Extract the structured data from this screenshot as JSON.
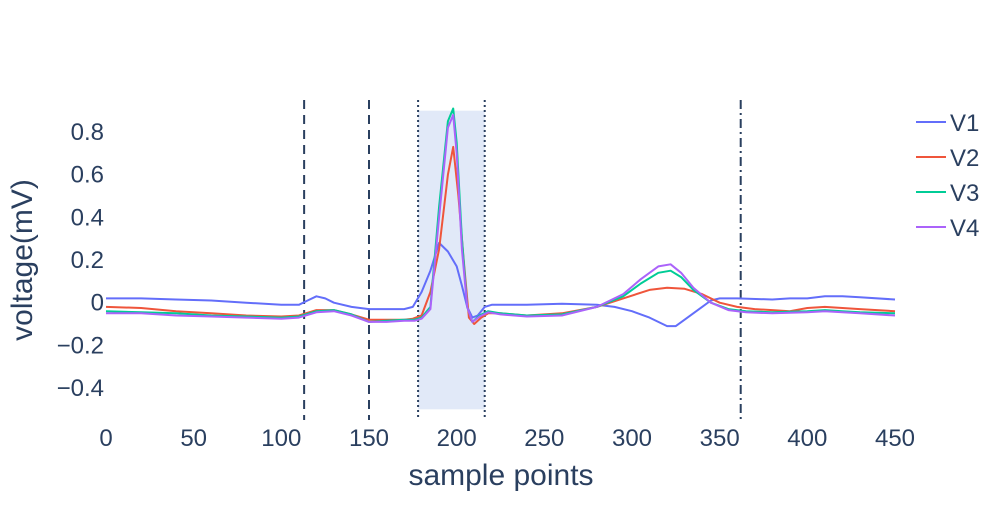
{
  "chart_data": {
    "type": "line",
    "title": "",
    "xlabel": "sample points",
    "ylabel": "voltage(mV)",
    "xlim": [
      0,
      450
    ],
    "ylim": [
      -0.55,
      0.95
    ],
    "x_ticks": [
      0,
      50,
      100,
      150,
      200,
      250,
      300,
      350,
      400,
      450
    ],
    "x_tick_labels": [
      "0",
      "50",
      "100",
      "150",
      "200",
      "250",
      "300",
      "350",
      "400",
      "450"
    ],
    "y_ticks": [
      0.8,
      0.6,
      0.4,
      0.2,
      0,
      -0.2,
      -0.4
    ],
    "y_tick_labels": [
      "0.8",
      "0.6",
      "0.4",
      "0.2",
      "0",
      "−0.2",
      "−0.4"
    ],
    "grid": false,
    "legend_position": "top-right",
    "highlight_region": {
      "x0": 178,
      "x1": 216,
      "y0": -0.5,
      "y1": 0.9,
      "color": "#e1e9f8"
    },
    "vlines": [
      {
        "x": 113,
        "style": "dash"
      },
      {
        "x": 150,
        "style": "dash"
      },
      {
        "x": 178,
        "style": "dot"
      },
      {
        "x": 216,
        "style": "dot"
      },
      {
        "x": 362,
        "style": "dashdot"
      }
    ],
    "series": [
      {
        "name": "V1",
        "color": "#636efa",
        "points": [
          [
            0,
            0.02
          ],
          [
            20,
            0.02
          ],
          [
            40,
            0.015
          ],
          [
            60,
            0.01
          ],
          [
            80,
            0.0
          ],
          [
            100,
            -0.01
          ],
          [
            110,
            -0.01
          ],
          [
            115,
            0.01
          ],
          [
            120,
            0.03
          ],
          [
            125,
            0.02
          ],
          [
            130,
            0.0
          ],
          [
            140,
            -0.02
          ],
          [
            150,
            -0.03
          ],
          [
            160,
            -0.03
          ],
          [
            170,
            -0.03
          ],
          [
            175,
            -0.02
          ],
          [
            180,
            0.05
          ],
          [
            185,
            0.15
          ],
          [
            190,
            0.28
          ],
          [
            195,
            0.24
          ],
          [
            200,
            0.17
          ],
          [
            203,
            0.08
          ],
          [
            206,
            -0.02
          ],
          [
            209,
            -0.07
          ],
          [
            212,
            -0.06
          ],
          [
            216,
            -0.02
          ],
          [
            220,
            -0.01
          ],
          [
            240,
            -0.01
          ],
          [
            260,
            -0.005
          ],
          [
            280,
            -0.01
          ],
          [
            290,
            -0.02
          ],
          [
            300,
            -0.04
          ],
          [
            310,
            -0.07
          ],
          [
            320,
            -0.11
          ],
          [
            325,
            -0.11
          ],
          [
            330,
            -0.08
          ],
          [
            340,
            -0.02
          ],
          [
            345,
            0.01
          ],
          [
            350,
            0.02
          ],
          [
            360,
            0.02
          ],
          [
            380,
            0.015
          ],
          [
            390,
            0.02
          ],
          [
            400,
            0.02
          ],
          [
            410,
            0.03
          ],
          [
            420,
            0.03
          ],
          [
            430,
            0.025
          ],
          [
            450,
            0.015
          ]
        ]
      },
      {
        "name": "V2",
        "color": "#ef553b",
        "points": [
          [
            0,
            -0.02
          ],
          [
            20,
            -0.025
          ],
          [
            40,
            -0.04
          ],
          [
            60,
            -0.05
          ],
          [
            80,
            -0.06
          ],
          [
            100,
            -0.065
          ],
          [
            110,
            -0.06
          ],
          [
            120,
            -0.035
          ],
          [
            130,
            -0.035
          ],
          [
            140,
            -0.055
          ],
          [
            150,
            -0.08
          ],
          [
            160,
            -0.08
          ],
          [
            170,
            -0.08
          ],
          [
            175,
            -0.075
          ],
          [
            180,
            -0.06
          ],
          [
            185,
            0.05
          ],
          [
            190,
            0.25
          ],
          [
            195,
            0.6
          ],
          [
            198,
            0.73
          ],
          [
            201,
            0.5
          ],
          [
            204,
            0.2
          ],
          [
            207,
            -0.07
          ],
          [
            210,
            -0.1
          ],
          [
            214,
            -0.07
          ],
          [
            218,
            -0.05
          ],
          [
            225,
            -0.05
          ],
          [
            240,
            -0.06
          ],
          [
            260,
            -0.05
          ],
          [
            280,
            -0.02
          ],
          [
            295,
            0.02
          ],
          [
            310,
            0.06
          ],
          [
            320,
            0.07
          ],
          [
            330,
            0.065
          ],
          [
            340,
            0.04
          ],
          [
            350,
            0.0
          ],
          [
            360,
            -0.02
          ],
          [
            370,
            -0.03
          ],
          [
            380,
            -0.035
          ],
          [
            390,
            -0.04
          ],
          [
            400,
            -0.025
          ],
          [
            410,
            -0.02
          ],
          [
            420,
            -0.025
          ],
          [
            430,
            -0.03
          ],
          [
            450,
            -0.04
          ]
        ]
      },
      {
        "name": "V3",
        "color": "#00cc96",
        "points": [
          [
            0,
            -0.04
          ],
          [
            20,
            -0.045
          ],
          [
            40,
            -0.05
          ],
          [
            60,
            -0.06
          ],
          [
            80,
            -0.065
          ],
          [
            100,
            -0.07
          ],
          [
            110,
            -0.065
          ],
          [
            120,
            -0.04
          ],
          [
            130,
            -0.035
          ],
          [
            140,
            -0.055
          ],
          [
            150,
            -0.09
          ],
          [
            160,
            -0.085
          ],
          [
            170,
            -0.08
          ],
          [
            176,
            -0.08
          ],
          [
            180,
            -0.07
          ],
          [
            185,
            -0.02
          ],
          [
            190,
            0.45
          ],
          [
            195,
            0.85
          ],
          [
            198,
            0.91
          ],
          [
            200,
            0.75
          ],
          [
            203,
            0.3
          ],
          [
            206,
            -0.02
          ],
          [
            209,
            -0.09
          ],
          [
            213,
            -0.06
          ],
          [
            218,
            -0.04
          ],
          [
            225,
            -0.05
          ],
          [
            240,
            -0.06
          ],
          [
            260,
            -0.055
          ],
          [
            280,
            -0.02
          ],
          [
            295,
            0.03
          ],
          [
            305,
            0.09
          ],
          [
            315,
            0.14
          ],
          [
            322,
            0.15
          ],
          [
            328,
            0.12
          ],
          [
            335,
            0.06
          ],
          [
            345,
            0.0
          ],
          [
            355,
            -0.03
          ],
          [
            365,
            -0.04
          ],
          [
            380,
            -0.045
          ],
          [
            400,
            -0.04
          ],
          [
            410,
            -0.035
          ],
          [
            420,
            -0.04
          ],
          [
            430,
            -0.045
          ],
          [
            450,
            -0.05
          ]
        ]
      },
      {
        "name": "V4",
        "color": "#ab63fa",
        "points": [
          [
            0,
            -0.05
          ],
          [
            20,
            -0.05
          ],
          [
            40,
            -0.06
          ],
          [
            60,
            -0.065
          ],
          [
            80,
            -0.07
          ],
          [
            100,
            -0.075
          ],
          [
            110,
            -0.07
          ],
          [
            120,
            -0.045
          ],
          [
            130,
            -0.04
          ],
          [
            140,
            -0.06
          ],
          [
            150,
            -0.09
          ],
          [
            160,
            -0.09
          ],
          [
            170,
            -0.085
          ],
          [
            176,
            -0.085
          ],
          [
            180,
            -0.075
          ],
          [
            185,
            -0.03
          ],
          [
            190,
            0.4
          ],
          [
            195,
            0.82
          ],
          [
            198,
            0.88
          ],
          [
            200,
            0.7
          ],
          [
            203,
            0.25
          ],
          [
            206,
            -0.02
          ],
          [
            209,
            -0.09
          ],
          [
            213,
            -0.065
          ],
          [
            218,
            -0.045
          ],
          [
            225,
            -0.055
          ],
          [
            240,
            -0.065
          ],
          [
            260,
            -0.06
          ],
          [
            280,
            -0.02
          ],
          [
            295,
            0.04
          ],
          [
            305,
            0.11
          ],
          [
            315,
            0.17
          ],
          [
            322,
            0.18
          ],
          [
            328,
            0.14
          ],
          [
            335,
            0.07
          ],
          [
            345,
            0.0
          ],
          [
            355,
            -0.035
          ],
          [
            365,
            -0.045
          ],
          [
            380,
            -0.05
          ],
          [
            400,
            -0.045
          ],
          [
            410,
            -0.04
          ],
          [
            420,
            -0.045
          ],
          [
            430,
            -0.05
          ],
          [
            450,
            -0.06
          ]
        ]
      }
    ]
  }
}
